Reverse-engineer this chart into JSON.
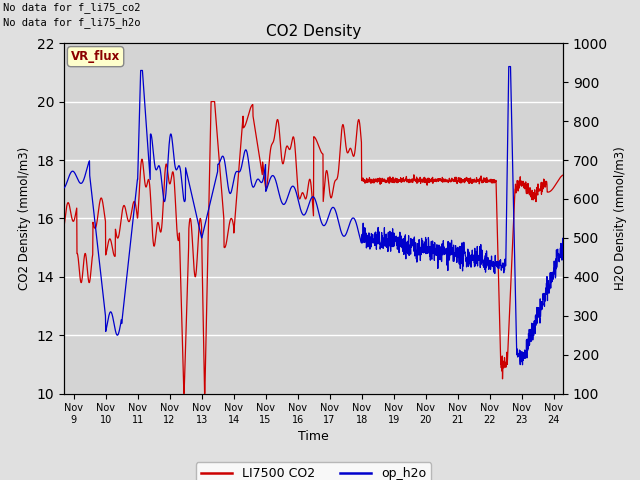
{
  "title": "CO2 Density",
  "xlabel": "Time",
  "ylabel_left": "CO2 Density (mmol/m3)",
  "ylabel_right": "H2O Density (mmol/m3)",
  "ylim_left": [
    10,
    22
  ],
  "ylim_right": [
    100,
    1000
  ],
  "yticks_left": [
    10,
    12,
    14,
    16,
    18,
    20,
    22
  ],
  "yticks_right": [
    100,
    200,
    300,
    400,
    500,
    600,
    700,
    800,
    900,
    1000
  ],
  "background_color": "#e0e0e0",
  "plot_bg_color": "#d4d4d4",
  "grid_color": "#ffffff",
  "text_annotations": [
    "No data for f_li75_co2",
    "No data for f_li75_h2o"
  ],
  "vr_flux_label": "VR_flux",
  "legend_entries": [
    "LI7500 CO2",
    "op_h2o"
  ],
  "legend_colors": [
    "#cc0000",
    "#0000cc"
  ],
  "co2_color": "#cc0000",
  "h2o_color": "#0000cc",
  "x_start_day": 8.7,
  "x_end_day": 24.3,
  "xtick_labels": [
    "Nov 9",
    "Nov 10",
    "Nov 11",
    "Nov 12",
    "Nov 13",
    "Nov 14",
    "Nov 15",
    "Nov 16",
    "Nov 17",
    "Nov 18",
    "Nov 19",
    "Nov 20",
    "Nov 21",
    "Nov 22",
    "Nov 23",
    "Nov 24"
  ],
  "xtick_positions": [
    9,
    10,
    11,
    12,
    13,
    14,
    15,
    16,
    17,
    18,
    19,
    20,
    21,
    22,
    23,
    24
  ]
}
